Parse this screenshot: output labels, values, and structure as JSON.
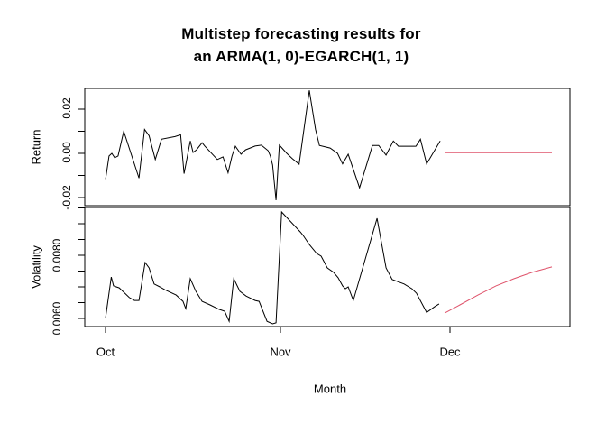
{
  "title": {
    "line1": "Multistep forecasting results for",
    "line2": "an ARMA(1, 0)-EGARCH(1, 1)"
  },
  "xlabel": "Month",
  "colors": {
    "observed": "#000000",
    "forecast": "#DF536B",
    "axis": "#000000",
    "background": "#ffffff"
  },
  "x_axis": {
    "unit": "days since Oct 1",
    "xlim": [
      -3.7,
      82.3
    ],
    "ticks": [
      {
        "value": 0,
        "label": "Oct"
      },
      {
        "value": 31,
        "label": "Nov"
      },
      {
        "value": 61,
        "label": "Dec"
      }
    ]
  },
  "chart_data": [
    {
      "type": "line",
      "panel": "top",
      "ylabel": "Return",
      "ylim": [
        -0.0237,
        0.0294
      ],
      "grid": false,
      "yticks_all": [
        -0.02,
        -0.01,
        0.0,
        0.01,
        0.02
      ],
      "ytick_labels": [
        {
          "value": 0.02,
          "label": "0.02"
        },
        {
          "value": 0.0,
          "label": "0.00"
        },
        {
          "value": -0.02,
          "label": "-0.02"
        }
      ],
      "series": [
        {
          "name": "observed return",
          "color_key": "observed",
          "x": [
            0,
            0.6,
            1.1,
            1.6,
            2.2,
            3.2,
            5.9,
            6.9,
            7.7,
            8.8,
            9.9,
            12.3,
            13.3,
            13.9,
            15.0,
            15.5,
            16.1,
            17.1,
            17.6,
            19.8,
            20.8,
            21.7,
            22.4,
            23.0,
            24.0,
            24.8,
            26.5,
            27.6,
            28.8,
            29.2,
            29.6,
            30.2,
            30.8,
            32.1,
            33.1,
            34.3,
            36.1,
            37.2,
            37.9,
            39.8,
            41.1,
            42.0,
            43.0,
            45.0,
            47.3,
            48.4,
            49.7,
            51.0,
            51.9,
            55.0,
            55.8,
            56.9,
            59.3
          ],
          "y": [
            -0.0116,
            -0.0012,
            0.0,
            -0.002,
            -0.0012,
            0.01,
            -0.0112,
            0.0108,
            0.008,
            -0.0028,
            0.0064,
            0.0076,
            0.0084,
            -0.0092,
            0.0056,
            0.0004,
            0.0016,
            0.0048,
            0.0032,
            -0.0028,
            -0.0016,
            -0.0088,
            -0.0012,
            0.0032,
            -0.0004,
            0.0016,
            0.0033,
            0.0037,
            0.0012,
            -0.0012,
            -0.0053,
            -0.0212,
            0.0037,
            0.0,
            -0.0024,
            -0.0049,
            0.0285,
            0.0108,
            0.0036,
            0.0024,
            0.0,
            -0.0048,
            -0.0004,
            -0.0156,
            0.0036,
            0.0036,
            -0.0008,
            0.0056,
            0.0032,
            0.0032,
            0.0064,
            -0.0048,
            0.0056
          ]
        },
        {
          "name": "forecast return",
          "color_key": "forecast",
          "x": [
            60.1,
            79.1
          ],
          "y": [
            0.0003,
            0.0003
          ]
        }
      ]
    },
    {
      "type": "line",
      "panel": "bottom",
      "ylabel": "Volatility",
      "ylim": [
        0.005743,
        0.009514
      ],
      "grid": false,
      "yticks_all": [
        0.006,
        0.0065,
        0.007,
        0.0075,
        0.008,
        0.0085,
        0.009,
        0.0095
      ],
      "ytick_labels": [
        {
          "value": 0.008,
          "label": "0.0080"
        },
        {
          "value": 0.006,
          "label": "0.0060"
        }
      ],
      "series": [
        {
          "name": "observed volatility",
          "color_key": "observed",
          "x": [
            0,
            1.0,
            1.4,
            2.4,
            4.2,
            5.1,
            5.9,
            7.0,
            7.7,
            8.6,
            9.6,
            10.5,
            12.5,
            13.7,
            14.2,
            15.0,
            16.0,
            17.1,
            18.5,
            20.1,
            21.1,
            21.9,
            22.7,
            23.8,
            24.9,
            26.5,
            27.2,
            28.6,
            29.6,
            30.2,
            31.2,
            34.5,
            35.0,
            36.1,
            37.4,
            38.2,
            39.3,
            40.4,
            41.2,
            42.0,
            42.5,
            43.0,
            43.9,
            48.1,
            49.7,
            50.8,
            52.9,
            54.3,
            55.1,
            56.9,
            58.3,
            59.1
          ],
          "y": [
            0.00603,
            0.00731,
            0.00703,
            0.00697,
            0.00666,
            0.00657,
            0.00657,
            0.00777,
            0.0076,
            0.00709,
            0.007,
            0.00691,
            0.00674,
            0.00654,
            0.00631,
            0.00726,
            0.00686,
            0.00654,
            0.00643,
            0.00629,
            0.00623,
            0.00591,
            0.00726,
            0.00686,
            0.00671,
            0.00657,
            0.00654,
            0.00591,
            0.00583,
            0.00586,
            0.00937,
            0.00874,
            0.00863,
            0.00834,
            0.00806,
            0.00797,
            0.0076,
            0.00746,
            0.00729,
            0.00703,
            0.00694,
            0.007,
            0.00657,
            0.00917,
            0.0076,
            0.00723,
            0.00709,
            0.00694,
            0.0068,
            0.00619,
            0.00637,
            0.00646
          ]
        },
        {
          "name": "forecast volatility",
          "color_key": "forecast",
          "x": [
            60.1,
            62.8,
            66.0,
            69.2,
            72.4,
            75.6,
            79.1
          ],
          "y": [
            0.00617,
            0.00643,
            0.00674,
            0.00703,
            0.00726,
            0.00746,
            0.00763
          ]
        }
      ]
    }
  ]
}
